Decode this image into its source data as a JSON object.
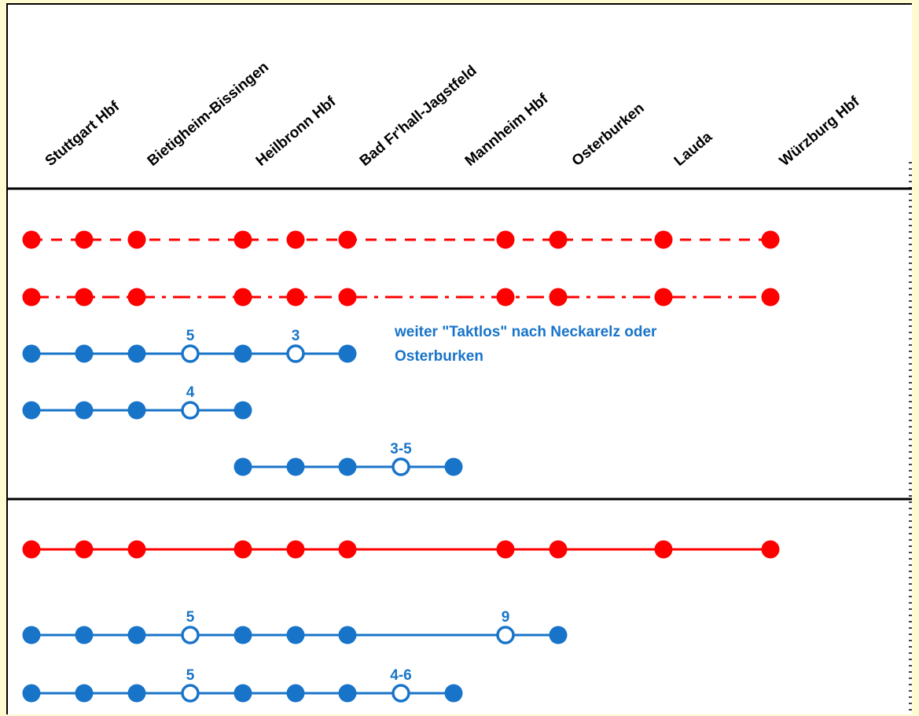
{
  "colors": {
    "red": "#ff0000",
    "blue": "#1874c9",
    "black": "#000000",
    "background": "#fffbd1"
  },
  "stations": [
    "Stuttgart Hbf",
    "Bietigheim-Bissingen",
    "Heilbronn Hbf",
    "Bad Fr'hall-Jagstfeld",
    "Mannheim Hbf",
    "Osterburken",
    "Lauda",
    "Würzburg Hbf"
  ],
  "lines": [
    {
      "id": "red-dashed",
      "color": "red",
      "style": "dashed",
      "group": 1,
      "stops": [
        {
          "x": 0
        },
        {
          "x": 1
        },
        {
          "x": 2
        },
        {
          "x": 4
        },
        {
          "x": 5
        },
        {
          "x": 6
        },
        {
          "x": 9
        },
        {
          "x": 10
        },
        {
          "x": 12
        },
        {
          "x": 14
        }
      ]
    },
    {
      "id": "red-dashdot",
      "color": "red",
      "style": "dashdot",
      "group": 1,
      "stops": [
        {
          "x": 0
        },
        {
          "x": 1
        },
        {
          "x": 2
        },
        {
          "x": 4
        },
        {
          "x": 5
        },
        {
          "x": 6
        },
        {
          "x": 9
        },
        {
          "x": 10
        },
        {
          "x": 12
        },
        {
          "x": 14
        }
      ]
    },
    {
      "id": "blue-1",
      "color": "blue",
      "style": "solid",
      "group": 1,
      "stops": [
        {
          "x": 0
        },
        {
          "x": 1
        },
        {
          "x": 2
        },
        {
          "x": 3,
          "open": true,
          "label": "5"
        },
        {
          "x": 4
        },
        {
          "x": 5,
          "open": true,
          "label": "3"
        },
        {
          "x": 6
        }
      ],
      "note": [
        "weiter \"Taktlos\" nach Neckarelz oder",
        "Osterburken"
      ]
    },
    {
      "id": "blue-2",
      "color": "blue",
      "style": "solid",
      "group": 1,
      "stops": [
        {
          "x": 0
        },
        {
          "x": 1
        },
        {
          "x": 2
        },
        {
          "x": 3,
          "open": true,
          "label": "4"
        },
        {
          "x": 4
        }
      ]
    },
    {
      "id": "blue-3",
      "color": "blue",
      "style": "solid",
      "group": 1,
      "stops": [
        {
          "x": 4
        },
        {
          "x": 5
        },
        {
          "x": 6
        },
        {
          "x": 7,
          "open": true,
          "label": "3-5"
        },
        {
          "x": 8
        }
      ]
    },
    {
      "id": "red-solid",
      "color": "red",
      "style": "solid",
      "group": 2,
      "stops": [
        {
          "x": 0
        },
        {
          "x": 1
        },
        {
          "x": 2
        },
        {
          "x": 4
        },
        {
          "x": 5
        },
        {
          "x": 6
        },
        {
          "x": 9
        },
        {
          "x": 10
        },
        {
          "x": 12
        },
        {
          "x": 14
        }
      ]
    },
    {
      "id": "blue-4",
      "color": "blue",
      "style": "solid",
      "group": 2,
      "stops": [
        {
          "x": 0
        },
        {
          "x": 1
        },
        {
          "x": 2
        },
        {
          "x": 3,
          "open": true,
          "label": "5"
        },
        {
          "x": 4
        },
        {
          "x": 5
        },
        {
          "x": 6
        },
        {
          "x": 9,
          "open": true,
          "label": "9"
        },
        {
          "x": 10
        }
      ]
    },
    {
      "id": "blue-5",
      "color": "blue",
      "style": "solid",
      "group": 2,
      "stops": [
        {
          "x": 0
        },
        {
          "x": 1
        },
        {
          "x": 2
        },
        {
          "x": 3,
          "open": true,
          "label": "5"
        },
        {
          "x": 4
        },
        {
          "x": 5
        },
        {
          "x": 6
        },
        {
          "x": 7,
          "open": true,
          "label": "4-6"
        },
        {
          "x": 8
        }
      ]
    }
  ]
}
